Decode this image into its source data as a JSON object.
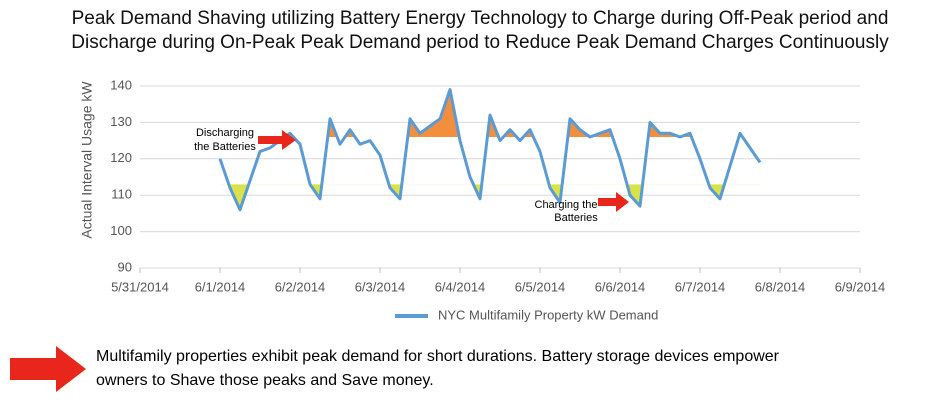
{
  "chart_data": {
    "type": "line",
    "title_lines": [
      "Peak Demand Shaving utilizing Battery Energy Technology to Charge during Off-Peak period and",
      "Discharge during On-Peak Peak Demand period to Reduce Peak Demand Charges Continuously"
    ],
    "y_label": "Actual Interval Usage kW",
    "x": [
      1.0,
      1.125,
      1.25,
      1.375,
      1.5,
      1.625,
      1.75,
      1.875,
      2.0,
      2.125,
      2.25,
      2.375,
      2.5,
      2.625,
      2.75,
      2.875,
      3.0,
      3.125,
      3.25,
      3.375,
      3.5,
      3.625,
      3.75,
      3.875,
      4.0,
      4.125,
      4.25,
      4.375,
      4.5,
      4.625,
      4.75,
      4.875,
      5.0,
      5.125,
      5.25,
      5.375,
      5.5,
      5.625,
      5.75,
      5.875,
      6.0,
      6.125,
      6.25,
      6.375,
      6.5,
      6.625,
      6.75,
      6.875,
      7.0,
      7.125,
      7.25,
      7.375,
      7.5,
      7.625,
      7.75
    ],
    "series": [
      {
        "name": "NYC Multifamily Property kW Demand",
        "color": "#5b9bd5",
        "values": [
          120,
          112,
          106,
          114,
          122,
          123,
          125,
          127,
          124,
          113,
          109,
          131,
          124,
          128,
          124,
          125,
          121,
          112,
          109,
          131,
          127,
          129,
          131,
          139,
          125,
          115,
          109,
          132,
          125,
          128,
          125,
          128,
          122,
          112,
          108,
          131,
          128,
          126,
          127,
          128,
          120,
          110,
          107,
          130,
          127,
          127,
          126,
          127,
          120,
          112,
          109,
          118,
          127,
          123,
          119
        ]
      }
    ],
    "xlim": [
      0,
      9
    ],
    "xticks": [
      {
        "value": 0,
        "label": "5/31/2014"
      },
      {
        "value": 1,
        "label": "6/1/2014"
      },
      {
        "value": 2,
        "label": "6/2/2014"
      },
      {
        "value": 3,
        "label": "6/3/2014"
      },
      {
        "value": 4,
        "label": "6/4/2014"
      },
      {
        "value": 5,
        "label": "6/5/2014"
      },
      {
        "value": 6,
        "label": "6/6/2014"
      },
      {
        "value": 7,
        "label": "6/7/2014"
      },
      {
        "value": 8,
        "label": "6/8/2014"
      },
      {
        "value": 9,
        "label": "6/9/2014"
      }
    ],
    "ylim": [
      90,
      140
    ],
    "yticks": [
      90,
      100,
      110,
      120,
      130,
      140
    ],
    "grid": true,
    "peak_shave_level": 126,
    "peak_shave_color": "#f28e3c",
    "charge_level": 113,
    "charge_color": "#d9e24a",
    "annotations": [
      {
        "lines": [
          "Discharging",
          "the Batteries"
        ]
      },
      {
        "lines": [
          "Charging the",
          "Batteries"
        ]
      }
    ],
    "footer_lines": [
      "Multifamily properties exhibit peak demand for short durations. Battery storage devices empower",
      "owners to Shave those peaks and Save money."
    ]
  }
}
